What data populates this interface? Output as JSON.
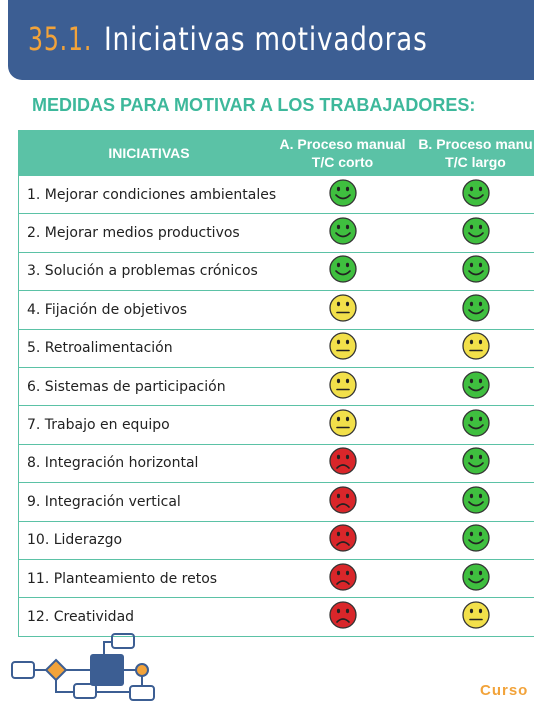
{
  "header": {
    "number": "35.1.",
    "title": "Iniciativas motivadoras"
  },
  "subtitle": "MEDIDAS PARA MOTIVAR A LOS TRABAJADORES:",
  "table": {
    "columns": [
      {
        "line1": "INICIATIVAS"
      },
      {
        "line1": "A. Proceso manual",
        "line2": "T/C corto"
      },
      {
        "line1": "B. Proceso manu",
        "line2": "T/C largo"
      }
    ],
    "face_colors": {
      "good": "#3fbf3f",
      "neutral": "#f2e04a",
      "bad": "#d9262a"
    },
    "rows": [
      {
        "label": "1. Mejorar condiciones ambientales",
        "a": "good",
        "b": "good"
      },
      {
        "label": "2. Mejorar medios productivos",
        "a": "good",
        "b": "good"
      },
      {
        "label": "3. Solución a problemas crónicos",
        "a": "good",
        "b": "good"
      },
      {
        "label": "4. Fijación de objetivos",
        "a": "neutral",
        "b": "good"
      },
      {
        "label": "5. Retroalimentación",
        "a": "neutral",
        "b": "neutral"
      },
      {
        "label": "6. Sistemas de participación",
        "a": "neutral",
        "b": "good"
      },
      {
        "label": "7. Trabajo en equipo",
        "a": "neutral",
        "b": "good"
      },
      {
        "label": "8. Integración horizontal",
        "a": "bad",
        "b": "good"
      },
      {
        "label": "9. Integración vertical",
        "a": "bad",
        "b": "good"
      },
      {
        "label": "10. Liderazgo",
        "a": "bad",
        "b": "good"
      },
      {
        "label": "11. Planteamiento de retos",
        "a": "bad",
        "b": "good"
      },
      {
        "label": "12. Creatividad",
        "a": "bad",
        "b": "neutral"
      }
    ]
  },
  "footer": {
    "text": "Curso"
  }
}
